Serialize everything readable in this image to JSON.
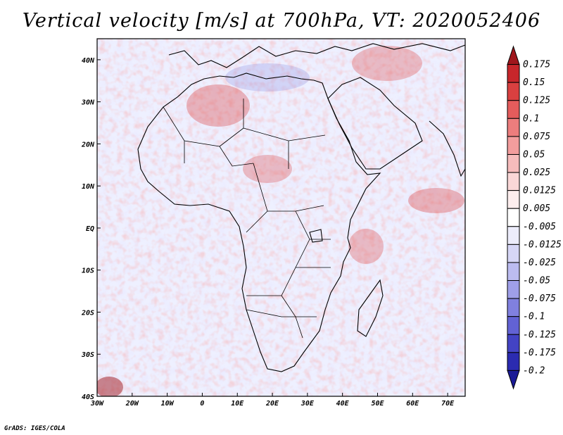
{
  "title": "Vertical velocity [m/s] at 700hPa, VT: 2020052406",
  "credit": "GrADS: IGES/COLA",
  "map": {
    "region": "Africa and surrounding oceans",
    "lon_range": [
      -30,
      75
    ],
    "lat_range": [
      -40,
      45
    ],
    "x_ticks": [
      "30W",
      "20W",
      "10W",
      "0",
      "10E",
      "20E",
      "30E",
      "40E",
      "50E",
      "60E",
      "70E"
    ],
    "y_ticks": [
      "40N",
      "30N",
      "20N",
      "10N",
      "EQ",
      "10S",
      "20S",
      "30S",
      "40S"
    ]
  },
  "colorbar": {
    "labels": [
      "0.175",
      "0.15",
      "0.125",
      "0.1",
      "0.075",
      "0.05",
      "0.025",
      "0.0125",
      "0.005",
      "-0.005",
      "-0.0125",
      "-0.025",
      "-0.05",
      "-0.075",
      "-0.1",
      "-0.125",
      "-0.175",
      "-0.2"
    ],
    "colors": [
      "#a0161c",
      "#c7262b",
      "#d94040",
      "#e45c5c",
      "#ec7d7d",
      "#f29d9d",
      "#f6bcbc",
      "#fad7d7",
      "#fdeeee",
      "#ffffff",
      "#ececfb",
      "#d6d6f6",
      "#bcbcf0",
      "#9f9fe8",
      "#8080df",
      "#6262d4",
      "#4343c4",
      "#2b2bb0",
      "#1a1a96"
    ]
  }
}
